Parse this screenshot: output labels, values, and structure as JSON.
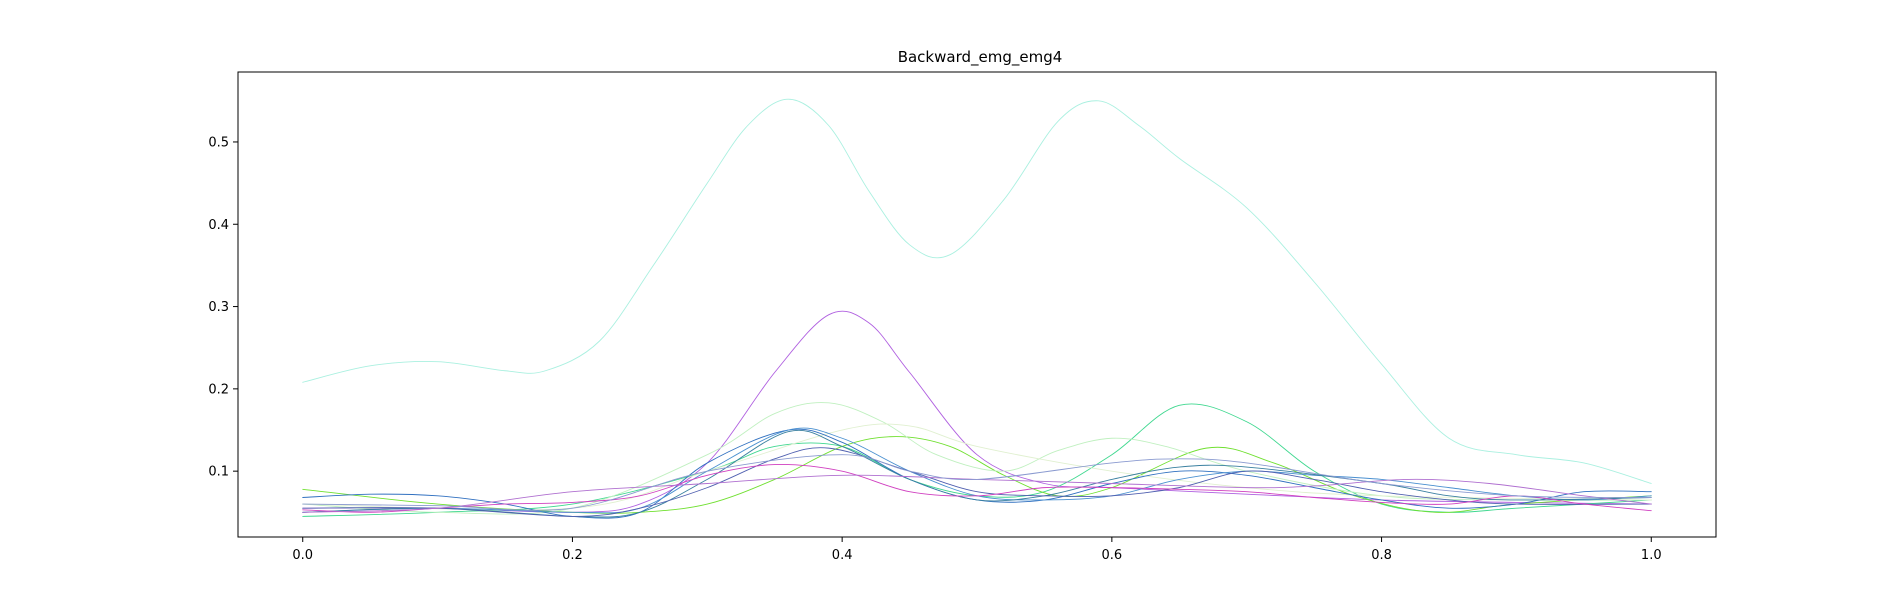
{
  "chart_data": {
    "type": "line",
    "title": "Backward_emg_emg4",
    "xlabel": "",
    "ylabel": "",
    "xlim": [
      -0.048,
      1.048
    ],
    "ylim": [
      0.02,
      0.585
    ],
    "xticks": [
      0.0,
      0.2,
      0.4,
      0.6,
      0.8,
      1.0
    ],
    "xtick_labels": [
      "0.0",
      "0.2",
      "0.4",
      "0.6",
      "0.8",
      "1.0"
    ],
    "yticks": [
      0.1,
      0.2,
      0.3,
      0.4,
      0.5
    ],
    "ytick_labels": [
      "0.1",
      "0.2",
      "0.3",
      "0.4",
      "0.5"
    ],
    "grid": false,
    "legend": "none",
    "series": [
      {
        "color": "#aaf0e0",
        "x": [
          0.0,
          0.05,
          0.1,
          0.15,
          0.18,
          0.22,
          0.26,
          0.3,
          0.33,
          0.36,
          0.39,
          0.42,
          0.45,
          0.48,
          0.52,
          0.56,
          0.59,
          0.62,
          0.65,
          0.7,
          0.75,
          0.8,
          0.85,
          0.9,
          0.95,
          1.0
        ],
        "y": [
          0.208,
          0.228,
          0.233,
          0.222,
          0.222,
          0.258,
          0.35,
          0.45,
          0.52,
          0.552,
          0.52,
          0.44,
          0.375,
          0.363,
          0.43,
          0.525,
          0.55,
          0.52,
          0.48,
          0.42,
          0.33,
          0.23,
          0.14,
          0.12,
          0.11,
          0.085
        ]
      },
      {
        "color": "#b060e0",
        "x": [
          0.0,
          0.1,
          0.2,
          0.25,
          0.3,
          0.35,
          0.39,
          0.42,
          0.45,
          0.5,
          0.55,
          0.6,
          0.7,
          0.8,
          0.9,
          1.0
        ],
        "y": [
          0.055,
          0.055,
          0.05,
          0.06,
          0.11,
          0.22,
          0.29,
          0.28,
          0.22,
          0.12,
          0.085,
          0.08,
          0.072,
          0.065,
          0.062,
          0.06
        ]
      },
      {
        "color": "#40d890",
        "x": [
          0.0,
          0.1,
          0.2,
          0.3,
          0.35,
          0.4,
          0.45,
          0.5,
          0.55,
          0.6,
          0.65,
          0.7,
          0.75,
          0.8,
          0.85,
          0.9,
          1.0
        ],
        "y": [
          0.045,
          0.05,
          0.06,
          0.1,
          0.13,
          0.13,
          0.09,
          0.07,
          0.075,
          0.12,
          0.18,
          0.16,
          0.1,
          0.06,
          0.05,
          0.055,
          0.065
        ]
      },
      {
        "color": "#70e030",
        "x": [
          0.0,
          0.1,
          0.2,
          0.25,
          0.3,
          0.35,
          0.4,
          0.44,
          0.48,
          0.52,
          0.56,
          0.6,
          0.67,
          0.72,
          0.78,
          0.84,
          0.9,
          1.0
        ],
        "y": [
          0.078,
          0.06,
          0.05,
          0.05,
          0.06,
          0.09,
          0.13,
          0.142,
          0.13,
          0.095,
          0.07,
          0.08,
          0.128,
          0.11,
          0.07,
          0.05,
          0.06,
          0.07
        ]
      },
      {
        "color": "#c0f0c0",
        "x": [
          0.0,
          0.1,
          0.2,
          0.3,
          0.35,
          0.39,
          0.43,
          0.47,
          0.52,
          0.56,
          0.6,
          0.64,
          0.7,
          0.8,
          0.9,
          1.0
        ],
        "y": [
          0.06,
          0.05,
          0.055,
          0.12,
          0.17,
          0.183,
          0.16,
          0.12,
          0.1,
          0.125,
          0.14,
          0.13,
          0.1,
          0.07,
          0.065,
          0.065
        ]
      },
      {
        "color": "#e0f0d0",
        "x": [
          0.0,
          0.2,
          0.3,
          0.4,
          0.45,
          0.5,
          0.6,
          0.7,
          0.8,
          1.0
        ],
        "y": [
          0.06,
          0.055,
          0.1,
          0.15,
          0.155,
          0.13,
          0.1,
          0.08,
          0.07,
          0.065
        ]
      },
      {
        "color": "#3070c0",
        "x": [
          0.0,
          0.05,
          0.1,
          0.15,
          0.2,
          0.25,
          0.3,
          0.36,
          0.4,
          0.45,
          0.5,
          0.55,
          0.6,
          0.65,
          0.7,
          0.75,
          0.8,
          0.85,
          0.9,
          0.95,
          1.0
        ],
        "y": [
          0.068,
          0.072,
          0.07,
          0.06,
          0.045,
          0.05,
          0.11,
          0.15,
          0.135,
          0.09,
          0.065,
          0.065,
          0.085,
          0.1,
          0.095,
          0.08,
          0.065,
          0.055,
          0.06,
          0.075,
          0.075
        ]
      },
      {
        "color": "#4a90d0",
        "x": [
          0.0,
          0.1,
          0.2,
          0.25,
          0.3,
          0.36,
          0.4,
          0.45,
          0.5,
          0.55,
          0.6,
          0.65,
          0.7,
          0.75,
          0.8,
          0.85,
          0.9,
          0.95,
          1.0
        ],
        "y": [
          0.05,
          0.055,
          0.05,
          0.055,
          0.1,
          0.15,
          0.14,
          0.1,
          0.07,
          0.065,
          0.07,
          0.09,
          0.1,
          0.095,
          0.09,
          0.08,
          0.07,
          0.065,
          0.07
        ]
      },
      {
        "color": "#3a80a0",
        "x": [
          0.0,
          0.1,
          0.2,
          0.25,
          0.3,
          0.36,
          0.4,
          0.45,
          0.5,
          0.55,
          0.6,
          0.65,
          0.7,
          0.8,
          0.85,
          0.9,
          1.0
        ],
        "y": [
          0.05,
          0.055,
          0.045,
          0.05,
          0.09,
          0.148,
          0.13,
          0.09,
          0.065,
          0.07,
          0.09,
          0.105,
          0.105,
          0.085,
          0.07,
          0.065,
          0.068
        ]
      },
      {
        "color": "#5060b0",
        "x": [
          0.0,
          0.1,
          0.2,
          0.25,
          0.3,
          0.35,
          0.39,
          0.45,
          0.5,
          0.55,
          0.6,
          0.65,
          0.7,
          0.75,
          0.8,
          0.85,
          0.9,
          1.0
        ],
        "y": [
          0.055,
          0.055,
          0.045,
          0.055,
          0.08,
          0.115,
          0.128,
          0.1,
          0.075,
          0.07,
          0.07,
          0.08,
          0.1,
          0.09,
          0.075,
          0.065,
          0.06,
          0.06
        ]
      },
      {
        "color": "#d040c0",
        "x": [
          0.0,
          0.05,
          0.1,
          0.15,
          0.2,
          0.25,
          0.3,
          0.35,
          0.4,
          0.45,
          0.5,
          0.55,
          0.6,
          0.65,
          0.7,
          0.75,
          0.8,
          0.85,
          0.9,
          0.95,
          1.0
        ],
        "y": [
          0.053,
          0.05,
          0.055,
          0.06,
          0.062,
          0.07,
          0.095,
          0.108,
          0.1,
          0.075,
          0.07,
          0.08,
          0.08,
          0.078,
          0.075,
          0.068,
          0.062,
          0.06,
          0.07,
          0.06,
          0.052
        ]
      },
      {
        "color": "#b070d0",
        "x": [
          0.0,
          0.1,
          0.2,
          0.3,
          0.4,
          0.5,
          0.6,
          0.7,
          0.75,
          0.82,
          0.88,
          0.95,
          1.0
        ],
        "y": [
          0.05,
          0.055,
          0.075,
          0.085,
          0.095,
          0.09,
          0.085,
          0.08,
          0.082,
          0.09,
          0.085,
          0.07,
          0.06
        ]
      },
      {
        "color": "#8a9ad0",
        "x": [
          0.0,
          0.1,
          0.2,
          0.3,
          0.4,
          0.45,
          0.5,
          0.6,
          0.65,
          0.7,
          0.8,
          0.9,
          1.0
        ],
        "y": [
          0.06,
          0.058,
          0.055,
          0.1,
          0.12,
          0.1,
          0.09,
          0.11,
          0.115,
          0.11,
          0.085,
          0.07,
          0.068
        ]
      }
    ]
  }
}
